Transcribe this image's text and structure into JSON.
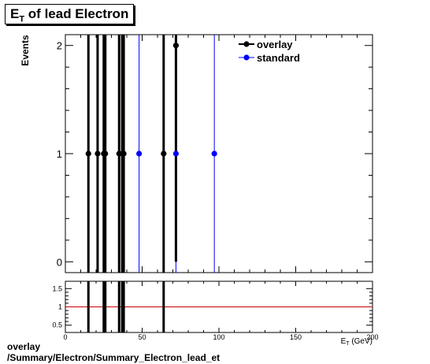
{
  "title": {
    "main": "E",
    "sub": "T",
    "rest": " of lead Electron"
  },
  "footer": {
    "line1": "overlay",
    "line2": "/Summary/Electron/Summary_Electron_lead_et"
  },
  "colors": {
    "overlay": "#000000",
    "standard": "#0000ff",
    "ratio_line": "#cc0000"
  },
  "chart_data": [
    {
      "type": "scatter",
      "ylabel": "Events",
      "xlabel": "E_T (GeV)",
      "xlim": [
        0,
        200
      ],
      "ylim": [
        -0.1,
        2.1
      ],
      "yticks": [
        0,
        1,
        2
      ],
      "legend_position": "top-right",
      "series": [
        {
          "name": "overlay",
          "color": "#000000",
          "points": [
            {
              "x": 15,
              "y": 1
            },
            {
              "x": 21,
              "y": 1
            },
            {
              "x": 25,
              "y": 1
            },
            {
              "x": 26,
              "y": 1
            },
            {
              "x": 35,
              "y": 1
            },
            {
              "x": 37,
              "y": 1
            },
            {
              "x": 38,
              "y": 1
            },
            {
              "x": 64,
              "y": 1
            },
            {
              "x": 72,
              "y": 2
            }
          ],
          "errors": [
            2,
            2,
            2,
            2,
            2,
            2,
            2,
            2,
            2
          ]
        },
        {
          "name": "standard",
          "color": "#0000ff",
          "points": [
            {
              "x": 48,
              "y": 1
            },
            {
              "x": 72,
              "y": 1
            },
            {
              "x": 97,
              "y": 1
            }
          ],
          "errors": [
            2,
            2,
            2
          ]
        }
      ]
    },
    {
      "type": "scatter",
      "xlim": [
        0,
        200
      ],
      "ylim": [
        0.3,
        1.7
      ],
      "yticks": [
        0.5,
        1,
        1.5
      ],
      "xticks": [
        0,
        50,
        100,
        150,
        200
      ],
      "reference_line": 1,
      "series": [
        {
          "name": "",
          "color": "#000000",
          "points": [
            {
              "x": 15,
              "y": 1
            },
            {
              "x": 25,
              "y": 1
            },
            {
              "x": 26,
              "y": 1
            },
            {
              "x": 35,
              "y": 1
            },
            {
              "x": 37,
              "y": 1
            },
            {
              "x": 38,
              "y": 1
            },
            {
              "x": 64,
              "y": 1
            }
          ]
        }
      ]
    }
  ]
}
